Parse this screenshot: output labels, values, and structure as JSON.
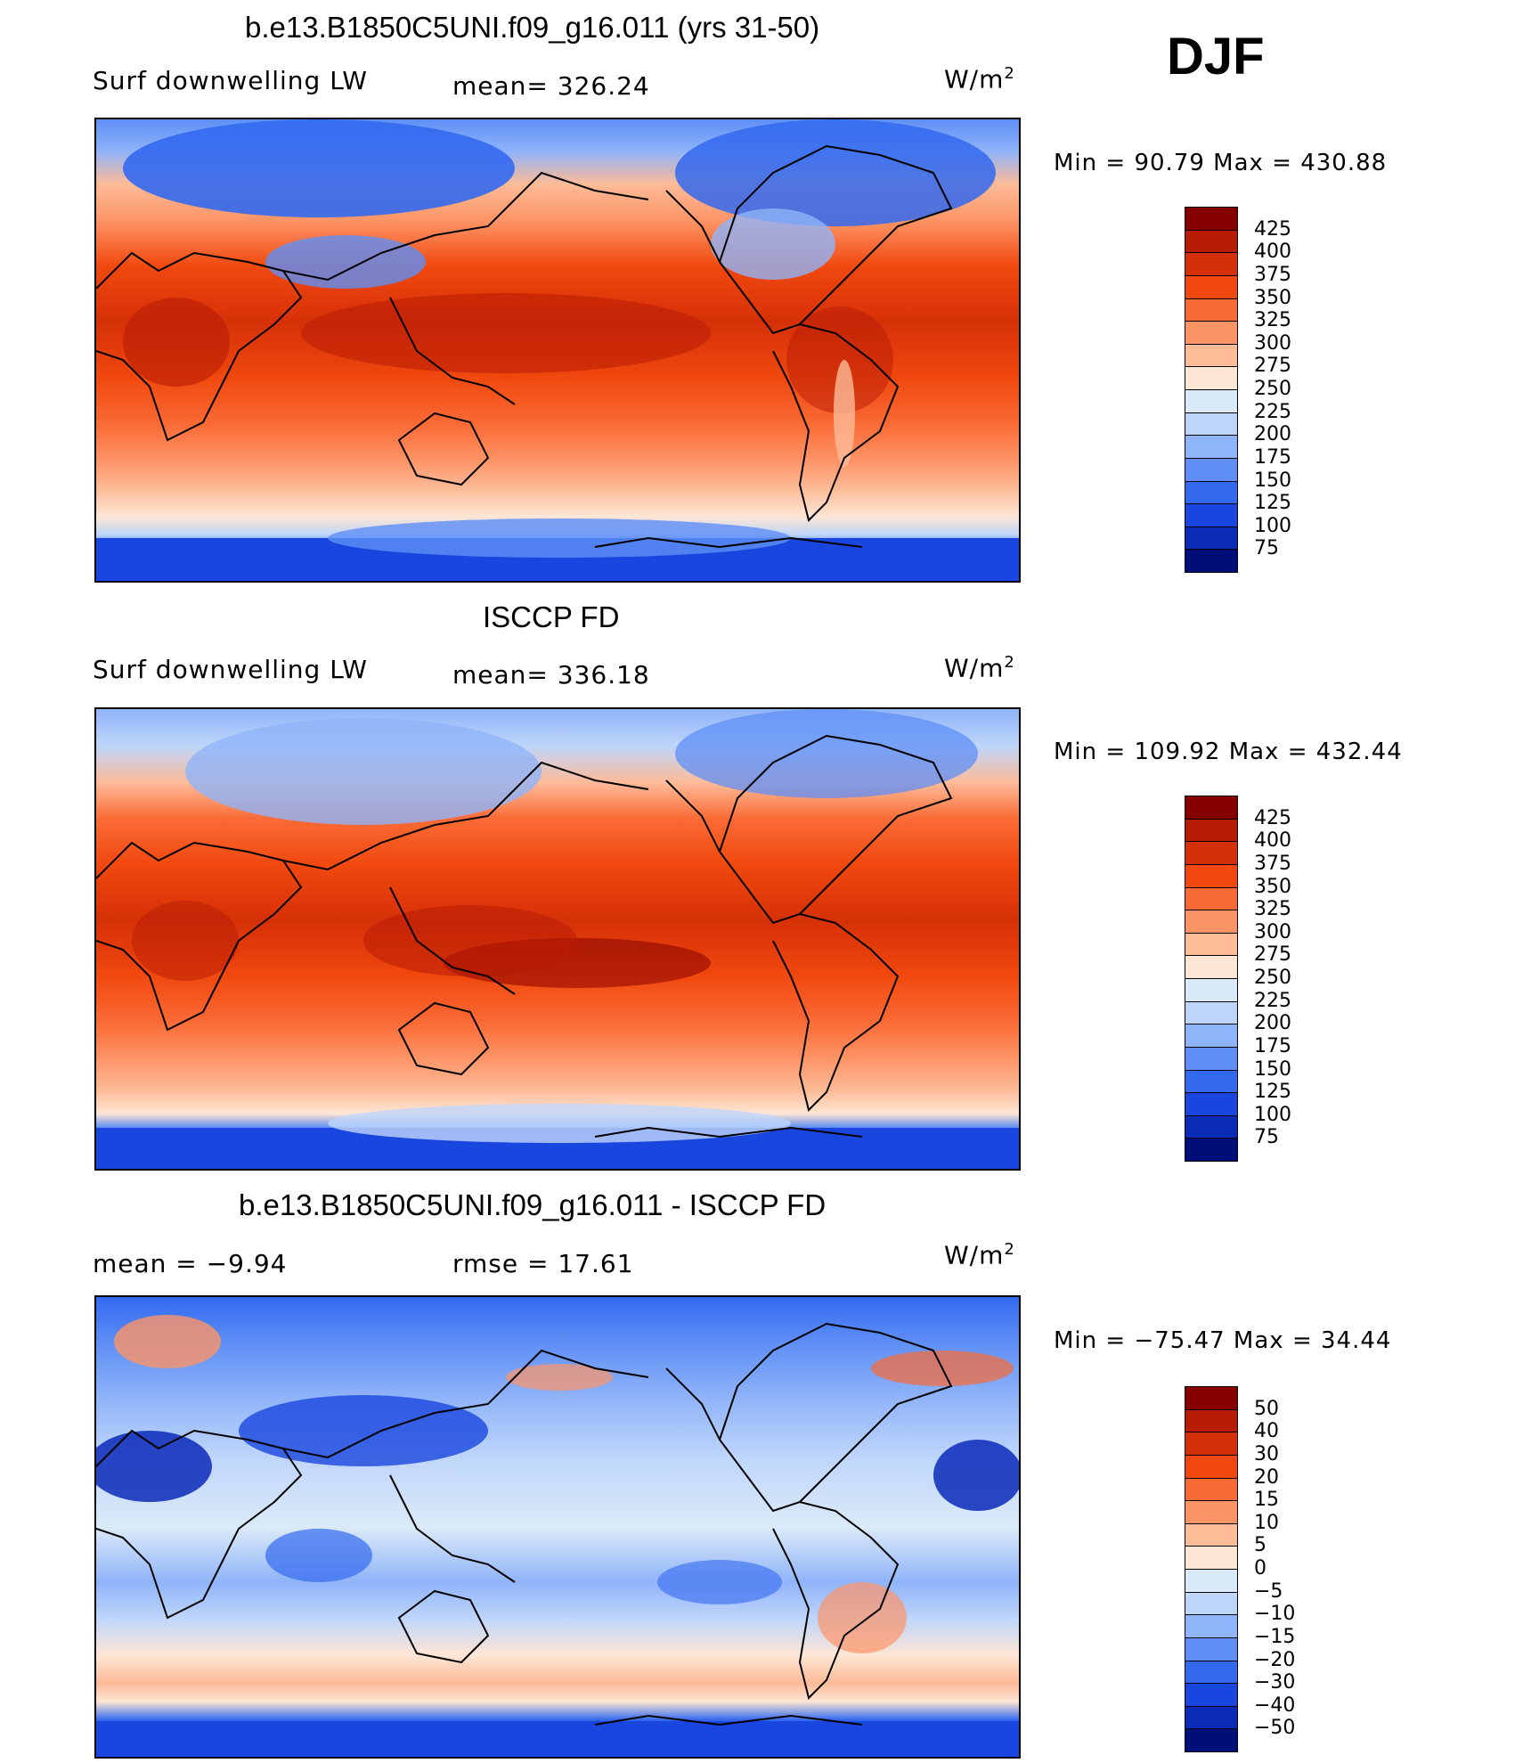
{
  "season": "DJF",
  "units": {
    "base": "W/m",
    "sup": "2"
  },
  "panels": [
    {
      "id": "model",
      "title": "b.e13.B1850C5UNI.f09_g16.011 (yrs 31-50)",
      "left_label": "Surf downwelling LW",
      "stat_text": "mean= 326.24",
      "minmax_text": "Min =   90.79 Max = 430.88",
      "kind": "field"
    },
    {
      "id": "obs",
      "title": "ISCCP FD",
      "left_label": "Surf downwelling LW",
      "stat_text": "mean= 336.18",
      "minmax_text": "Min = 109.92 Max = 432.44",
      "kind": "field"
    },
    {
      "id": "diff",
      "title": "b.e13.B1850C5UNI.f09_g16.011 - ISCCP FD",
      "left_label": "mean =   −9.94",
      "stat_text": "rmse =   17.61",
      "minmax_text": "Min = −75.47 Max =   34.44",
      "kind": "diff"
    }
  ],
  "colorbars": {
    "field": {
      "labels": [
        "425",
        "400",
        "375",
        "350",
        "325",
        "300",
        "275",
        "250",
        "225",
        "200",
        "175",
        "150",
        "125",
        "100",
        "75"
      ],
      "colors": [
        "#870000",
        "#b81c05",
        "#d63008",
        "#f0480e",
        "#fa6a35",
        "#fd9466",
        "#fdbb98",
        "#fee6d4",
        "#dbeaf8",
        "#bfd6fb",
        "#90b4f9",
        "#5f8ff5",
        "#3369ef",
        "#1946de",
        "#0a2ab8",
        "#000e7a"
      ]
    },
    "diff": {
      "labels": [
        "50",
        "40",
        "30",
        "20",
        "15",
        "10",
        "5",
        "0",
        "−5",
        "−10",
        "−15",
        "−20",
        "−30",
        "−40",
        "−50"
      ],
      "colors": [
        "#870000",
        "#b81c05",
        "#d63008",
        "#f0480e",
        "#fa6a35",
        "#fd9466",
        "#fdbb98",
        "#fee6d4",
        "#dbeaf8",
        "#bfd6fb",
        "#90b4f9",
        "#5f8ff5",
        "#3369ef",
        "#1946de",
        "#0a2ab8",
        "#000e7a"
      ]
    }
  }
}
